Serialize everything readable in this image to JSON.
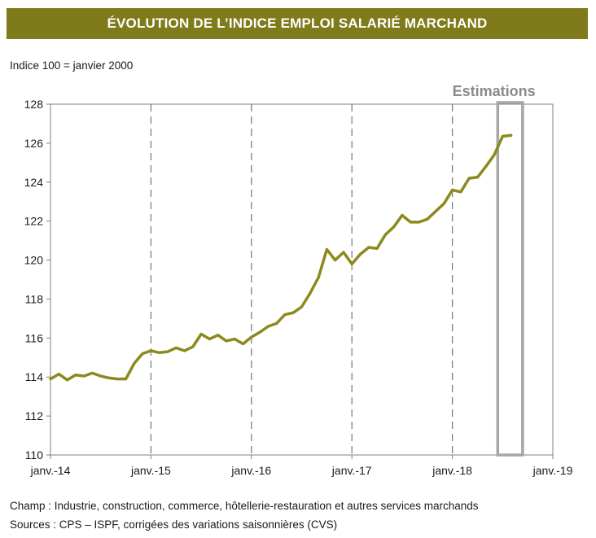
{
  "header": {
    "title": "ÉVOLUTION DE L’INDICE EMPLOI SALARIÉ MARCHAND"
  },
  "subtitle": "Indice 100 = janvier 2000",
  "footer": {
    "champ": "Champ : Industrie, construction, commerce, hôtellerie-restauration et autres services marchands",
    "sources": "Sources : CPS – ISPF, corrigées des variations saisonnières (CVS)"
  },
  "colors": {
    "title_bg": "#7f7a1a",
    "line": "#8c8a1c",
    "estimation_box": "#a6a6a6",
    "grid": "#808080"
  },
  "chart_data": {
    "type": "line",
    "title": "ÉVOLUTION DE L’INDICE EMPLOI SALARIÉ MARCHAND",
    "ylabel": "Indice 100 = janvier 2000",
    "ylim": [
      110,
      128
    ],
    "yticks": [
      110,
      112,
      114,
      116,
      118,
      120,
      122,
      124,
      126,
      128
    ],
    "xlim": [
      "janv.-14",
      "janv.-19"
    ],
    "xticks": [
      "janv.-14",
      "janv.-15",
      "janv.-16",
      "janv.-17",
      "janv.-18",
      "janv.-19"
    ],
    "grid": "vertical dashed at xticks",
    "annotation": {
      "label": "Estimations",
      "from": "2018-07",
      "to": "2018-09"
    },
    "series": [
      {
        "name": "",
        "x": [
          "2014-01",
          "2014-02",
          "2014-03",
          "2014-04",
          "2014-05",
          "2014-06",
          "2014-07",
          "2014-08",
          "2014-09",
          "2014-10",
          "2014-11",
          "2014-12",
          "2015-01",
          "2015-02",
          "2015-03",
          "2015-04",
          "2015-05",
          "2015-06",
          "2015-07",
          "2015-08",
          "2015-09",
          "2015-10",
          "2015-11",
          "2015-12",
          "2016-01",
          "2016-02",
          "2016-03",
          "2016-04",
          "2016-05",
          "2016-06",
          "2016-07",
          "2016-08",
          "2016-09",
          "2016-10",
          "2016-11",
          "2016-12",
          "2017-01",
          "2017-02",
          "2017-03",
          "2017-04",
          "2017-05",
          "2017-06",
          "2017-07",
          "2017-08",
          "2017-09",
          "2017-10",
          "2017-11",
          "2017-12",
          "2018-01",
          "2018-02",
          "2018-03",
          "2018-04",
          "2018-05",
          "2018-06",
          "2018-07",
          "2018-08"
        ],
        "values": [
          113.9,
          114.15,
          113.85,
          114.1,
          114.05,
          114.2,
          114.05,
          113.95,
          113.9,
          113.9,
          114.7,
          115.2,
          115.35,
          115.25,
          115.3,
          115.5,
          115.35,
          115.55,
          116.2,
          115.95,
          116.15,
          115.85,
          115.95,
          115.7,
          116.05,
          116.3,
          116.6,
          116.75,
          117.2,
          117.3,
          117.6,
          118.3,
          119.1,
          120.55,
          120.0,
          120.4,
          119.8,
          120.3,
          120.65,
          120.6,
          121.3,
          121.7,
          122.3,
          121.95,
          121.95,
          122.1,
          122.5,
          122.9,
          123.6,
          123.5,
          124.2,
          124.25,
          124.8,
          125.4,
          126.35,
          126.4
        ]
      }
    ]
  }
}
